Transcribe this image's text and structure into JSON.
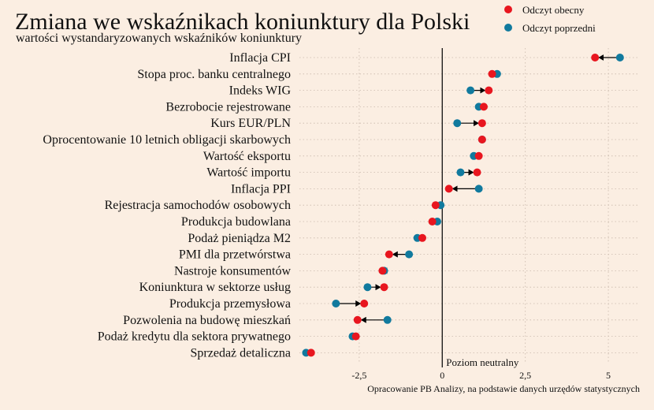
{
  "title": "Zmiana we wskaźnikach koniunktury dla Polski",
  "subtitle": "wartości wystandaryzowanych wskaźników koniunktury",
  "caption": "Opracowanie PB Analizy, na podstawie danych urzędów statystycznych",
  "colors": {
    "current": "#E8161F",
    "previous": "#117A9E",
    "background": "#FBEEE2",
    "grid": "#C9B9AC",
    "zero_line": "#111111"
  },
  "chart_data": {
    "type": "dumbbell",
    "title": "Zmiana we wskaźnikach koniunktury dla Polski",
    "subtitle": "wartości wystandaryzowanych wskaźników koniunktury",
    "xlim": [
      -4.3,
      5.9
    ],
    "xticks": [
      -2.5,
      0,
      2.5,
      5
    ],
    "xtick_labels": [
      "-2,5",
      "0",
      "2,5",
      "5"
    ],
    "neutral_label": "Poziom neutralny",
    "legend": [
      {
        "key": "current",
        "label": "Odczyt obecny"
      },
      {
        "key": "previous",
        "label": "Odczyt poprzedni"
      }
    ],
    "categories": [
      "Inflacja CPI",
      "Stopa proc. banku centralnego",
      "Indeks WIG",
      "Bezrobocie rejestrowane",
      "Kurs EUR/PLN",
      "Oprocentowanie 10 letnich obligacji skarbowych",
      "Wartość eksportu",
      "Wartość importu",
      "Inflacja PPI",
      "Rejestracja samochodów osobowych",
      "Produkcja budowlana",
      "Podaż pieniądza M2",
      "PMI dla przetwórstwa",
      "Nastroje konsumentów",
      "Koniunktura w sektorze usług",
      "Produkcja przemysłowa",
      "Pozwolenia na budowę mieszkań",
      "Podaż kredytu dla sektora prywatnego",
      "Sprzedaż detaliczna"
    ],
    "series": [
      {
        "name": "Odczyt obecny",
        "key": "current",
        "values": [
          4.6,
          1.5,
          1.4,
          1.25,
          1.2,
          1.2,
          1.1,
          1.05,
          0.2,
          -0.2,
          -0.3,
          -0.6,
          -1.6,
          -1.8,
          -1.75,
          -2.35,
          -2.55,
          -2.6,
          -3.95
        ]
      },
      {
        "name": "Odczyt poprzedni",
        "key": "previous",
        "values": [
          5.35,
          1.65,
          0.85,
          1.1,
          0.45,
          1.2,
          0.95,
          0.55,
          1.1,
          -0.05,
          -0.15,
          -0.75,
          -1.0,
          -1.75,
          -2.25,
          -3.2,
          -1.65,
          -2.7,
          -4.1
        ]
      }
    ]
  }
}
